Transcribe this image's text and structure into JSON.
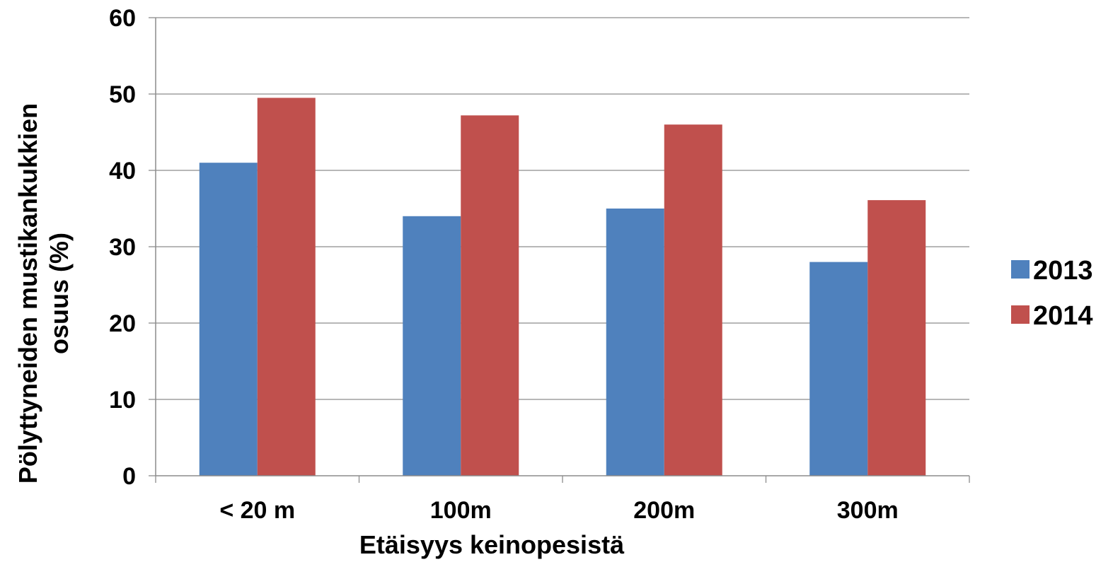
{
  "chart_data": {
    "type": "bar",
    "title": "",
    "xlabel": "Etäisyys keinopesistä",
    "ylabel_lines": [
      "Pölyttyneiden mustikankukkien",
      "osuus  (%)"
    ],
    "categories": [
      "< 20 m",
      "100m",
      "200m",
      "300m"
    ],
    "series": [
      {
        "name": "2013",
        "color": "#4F81BD",
        "values": [
          41,
          34,
          35,
          28
        ]
      },
      {
        "name": "2014",
        "color": "#C0504D",
        "values": [
          49.5,
          47.2,
          46,
          36.1
        ]
      }
    ],
    "ylim": [
      0,
      60
    ],
    "yticks": [
      0,
      10,
      20,
      30,
      40,
      50,
      60
    ],
    "grid": true,
    "legend_position": "right"
  }
}
